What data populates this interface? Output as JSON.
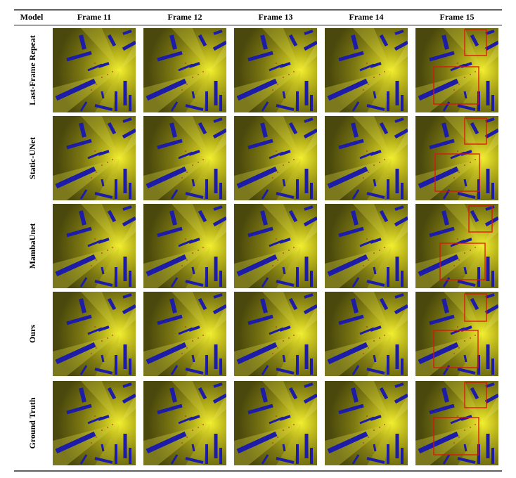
{
  "table": {
    "columns": [
      "Model",
      "Frame 11",
      "Frame 12",
      "Frame 13",
      "Frame 14",
      "Frame 15"
    ],
    "rows": [
      "Last-Frame Repeat",
      "Static-UNet",
      "MambaUnet",
      "Ours",
      "Ground Truth"
    ]
  }
}
